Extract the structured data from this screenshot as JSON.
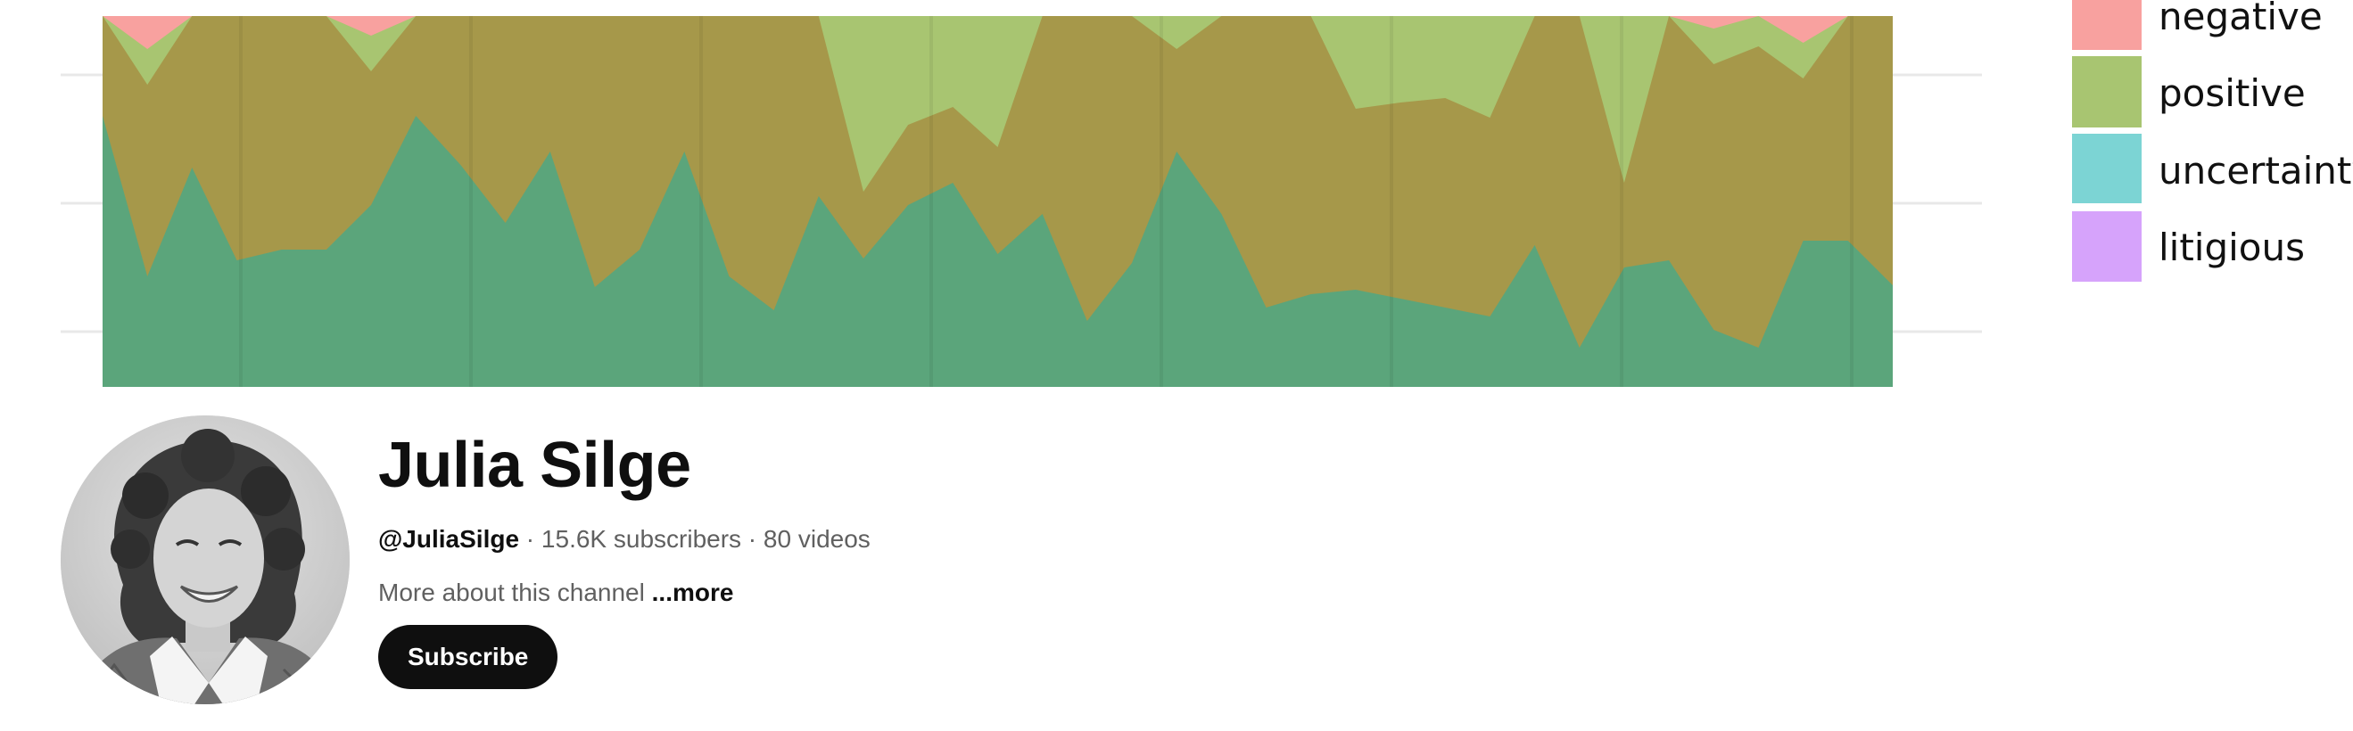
{
  "channel": {
    "name": "Julia Silge",
    "handle": "@JuliaSilge",
    "separator": " · ",
    "subscribers": "15.6K subscribers",
    "videos": "80 videos",
    "about_text": "More about this channel",
    "more_link": "...more",
    "subscribe_label": "Subscribe",
    "avatar": "avatar-photo"
  },
  "banner": {
    "legend": [
      {
        "label": "negative",
        "color": "#f8a19f"
      },
      {
        "label": "positive",
        "color": "#a8c571"
      },
      {
        "label": "uncertainty",
        "color": "#7cd4d4"
      },
      {
        "label": "litigious",
        "color": "#d6a3fb"
      }
    ],
    "colors": {
      "background": "#ffffff",
      "gridline": "#e8e8e8",
      "negative": "#f8a19f",
      "positive": "#a8c571",
      "olive": "#a6984a",
      "green": "#5ba57b"
    }
  }
}
